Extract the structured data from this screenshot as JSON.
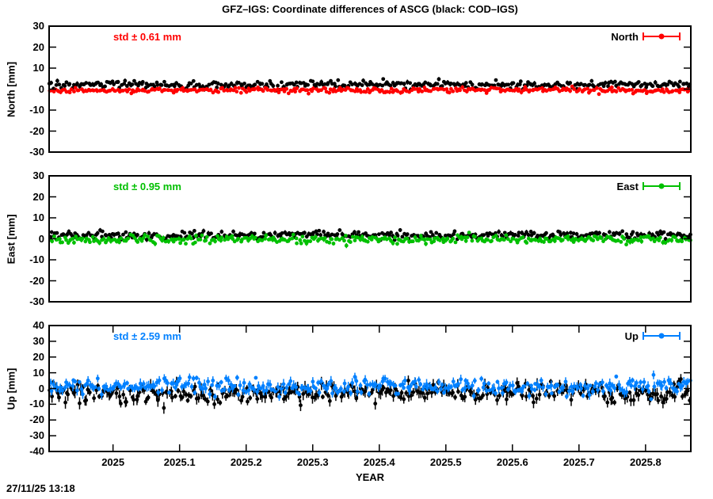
{
  "header": {
    "title": "GFZ–IGS: Coordinate differences of ASCG (black: COD–IGS)"
  },
  "footer": {
    "timestamp": "27/11/25 13:18"
  },
  "x_axis": {
    "label": "YEAR",
    "tick_labels": [
      "2025",
      "2025.1",
      "2025.2",
      "2025.3",
      "2025.4",
      "2025.5",
      "2025.6",
      "2025.7",
      "2025.8"
    ],
    "tick_values": [
      2025,
      2025.1,
      2025.2,
      2025.3,
      2025.4,
      2025.5,
      2025.6,
      2025.7,
      2025.8
    ],
    "range": [
      2024.904,
      2025.868
    ]
  },
  "chart_data": [
    {
      "panel": "north",
      "type": "scatter",
      "ylabel": "North [mm]",
      "ylim": [
        -30,
        30
      ],
      "ytick_values": [
        30,
        20,
        10,
        0,
        -10,
        -20,
        -30
      ],
      "std_label": "std ± 0.61 mm",
      "std_mm": 0.61,
      "legend_label": "North",
      "accent_color": "#ff0000",
      "grid": false,
      "series": [
        {
          "name": "COD-IGS",
          "color": "#000000",
          "mean_mm": 2.0,
          "std_mm": 0.9,
          "ebar_mm": 0.8,
          "n_points": 350
        },
        {
          "name": "GFZ-IGS",
          "color": "#ff0000",
          "mean_mm": -0.5,
          "std_mm": 0.61,
          "ebar_mm": 0.7,
          "n_points": 350
        }
      ]
    },
    {
      "panel": "east",
      "type": "scatter",
      "ylabel": "East [mm]",
      "ylim": [
        -30,
        30
      ],
      "ytick_values": [
        30,
        20,
        10,
        0,
        -10,
        -20,
        -30
      ],
      "std_label": "std ± 0.95 mm",
      "std_mm": 0.95,
      "legend_label": "East",
      "accent_color": "#00c000",
      "grid": false,
      "series": [
        {
          "name": "COD-IGS",
          "color": "#000000",
          "mean_mm": 1.8,
          "std_mm": 0.95,
          "ebar_mm": 0.8,
          "n_points": 350
        },
        {
          "name": "GFZ-IGS",
          "color": "#00c000",
          "mean_mm": -0.3,
          "std_mm": 0.95,
          "ebar_mm": 0.8,
          "n_points": 350
        }
      ]
    },
    {
      "panel": "up",
      "type": "scatter",
      "ylabel": "Up [mm]",
      "ylim": [
        -40,
        40
      ],
      "ytick_values": [
        40,
        30,
        20,
        10,
        0,
        -10,
        -20,
        -30,
        -40
      ],
      "std_label": "std ± 2.59 mm",
      "std_mm": 2.59,
      "legend_label": "Up",
      "accent_color": "#0080ff",
      "grid": false,
      "series": [
        {
          "name": "COD-IGS",
          "color": "#000000",
          "mean_mm": -2.5,
          "std_mm": 3.0,
          "ebar_mm": 2.8,
          "n_points": 350
        },
        {
          "name": "GFZ-IGS",
          "color": "#0080ff",
          "mean_mm": 1.0,
          "std_mm": 2.59,
          "ebar_mm": 2.2,
          "n_points": 350
        }
      ]
    }
  ]
}
